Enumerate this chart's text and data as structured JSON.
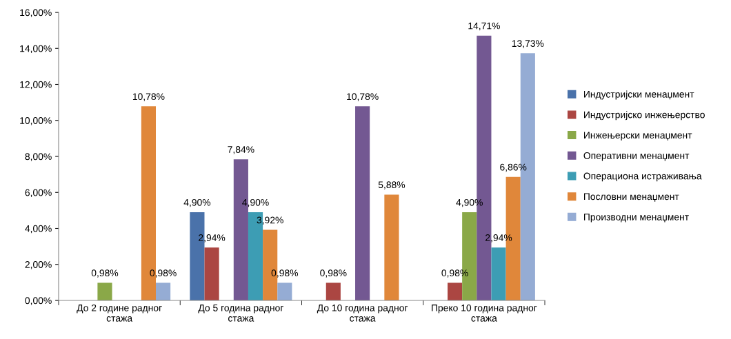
{
  "chart_data": {
    "type": "bar",
    "categories": [
      "До 2 године радног стажа",
      "До 5 година радног стажа",
      "До 10 година радног стажа",
      "Преко 10 година радног стажа"
    ],
    "series": [
      {
        "name": "Индустријски менаџмент",
        "color": "#4a72aa",
        "values": [
          null,
          4.9,
          null,
          null
        ],
        "value_labels": [
          null,
          "4,90%",
          null,
          null
        ]
      },
      {
        "name": "Индустријско инжењерство",
        "color": "#ab4642",
        "values": [
          null,
          2.94,
          0.98,
          0.98
        ],
        "value_labels": [
          null,
          "2,94%",
          "0,98%",
          "0,98%"
        ]
      },
      {
        "name": "Инжењерски менаџмент",
        "color": "#8aa848",
        "values": [
          0.98,
          null,
          null,
          4.9
        ],
        "value_labels": [
          "0,98%",
          null,
          null,
          "4,90%"
        ]
      },
      {
        "name": "Оперативни менаџмент",
        "color": "#735892",
        "values": [
          null,
          7.84,
          10.78,
          14.71
        ],
        "value_labels": [
          null,
          "7,84%",
          "10,78%",
          "14,71%"
        ]
      },
      {
        "name": "Операциона истраживања",
        "color": "#3d9db4",
        "values": [
          null,
          4.9,
          null,
          2.94
        ],
        "value_labels": [
          null,
          "4,90%",
          null,
          "2,94%"
        ]
      },
      {
        "name": "Пословни менаџмент",
        "color": "#e0873a",
        "values": [
          10.78,
          3.92,
          5.88,
          6.86
        ],
        "value_labels": [
          "10,78%",
          "3,92%",
          "5,88%",
          "6,86%"
        ]
      },
      {
        "name": "Производни менаџмент",
        "color": "#95acd4",
        "values": [
          0.98,
          0.98,
          null,
          13.73
        ],
        "value_labels": [
          "0,98%",
          "0,98%",
          null,
          "13,73%"
        ]
      }
    ],
    "ylim": [
      0,
      16
    ],
    "yticks": [
      {
        "value": 0,
        "label": "0,00%"
      },
      {
        "value": 2,
        "label": "2,00%"
      },
      {
        "value": 4,
        "label": "4,00%"
      },
      {
        "value": 6,
        "label": "6,00%"
      },
      {
        "value": 8,
        "label": "8,00%"
      },
      {
        "value": 10,
        "label": "10,00%"
      },
      {
        "value": 12,
        "label": "12,00%"
      },
      {
        "value": 14,
        "label": "14,00%"
      },
      {
        "value": 16,
        "label": "16,00%"
      }
    ],
    "grid": false,
    "legend": "right"
  }
}
